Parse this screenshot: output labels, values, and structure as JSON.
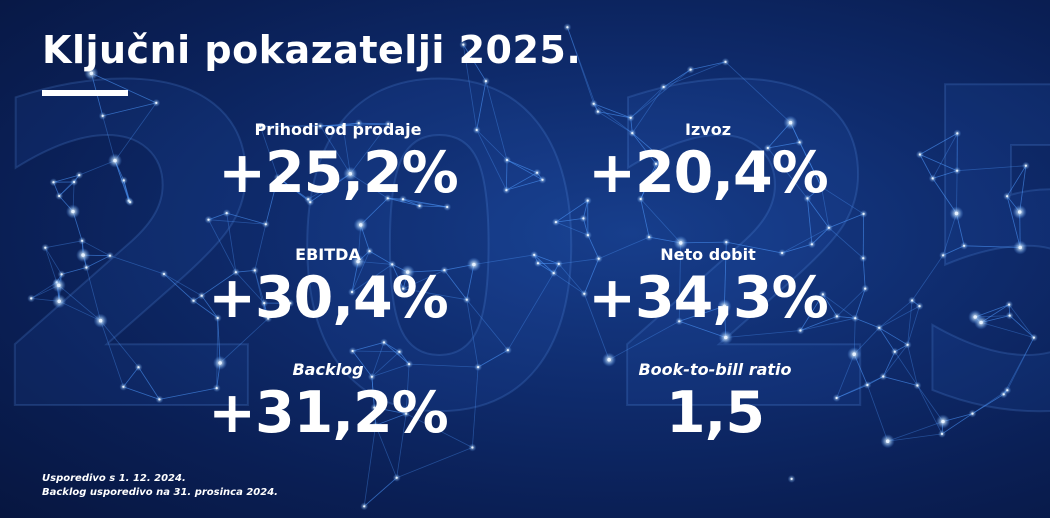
{
  "title": "Ključni pokazatelji 2025.",
  "colors": {
    "background": "#0f2c6e",
    "background_dark": "#071640",
    "network_lines": "#4f9bff",
    "network_nodes": "#cfe6ff",
    "text": "#ffffff"
  },
  "background_art": "2025",
  "metrics": {
    "prihodi": {
      "label": "Prihodi od prodaje",
      "value": "+25,2%"
    },
    "izvoz": {
      "label": "Izvoz",
      "value": "+20,4%"
    },
    "ebitda": {
      "label": "EBITDA",
      "value": "+30,4%"
    },
    "neto": {
      "label": "Neto dobit",
      "value": "+34,3%"
    },
    "backlog": {
      "label": "Backlog",
      "value": "+31,2%"
    },
    "book_to_bill": {
      "label": "Book-to-bill ratio",
      "value": "1,5"
    }
  },
  "footnotes": [
    "Usporedivo s 1. 12. 2024.",
    "Backlog usporedivo na 31. prosinca 2024."
  ]
}
